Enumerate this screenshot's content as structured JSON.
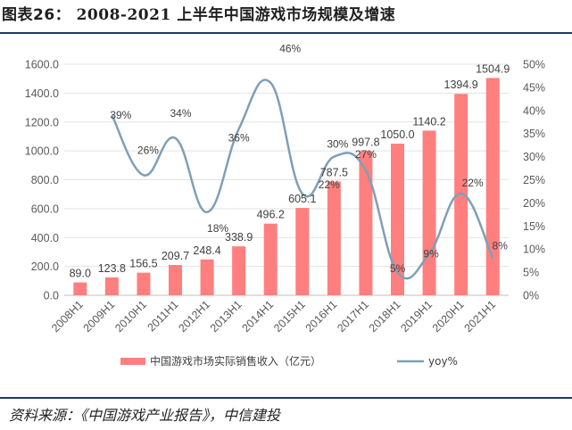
{
  "header": {
    "prefix": "图表26：",
    "title": "2008-2021 上半年中国游戏市场规模及增速"
  },
  "source": "资料来源：《中国游戏产业报告》，中信建投",
  "colors": {
    "bar": "#ff7f7f",
    "line": "#7f9fb7",
    "rule": "#1f3864"
  },
  "chart_data": {
    "type": "bar+line",
    "categories": [
      "2008H1",
      "2009H1",
      "2010H1",
      "2011H1",
      "2012H1",
      "2013H1",
      "2014H1",
      "2015H1",
      "2016H1",
      "2017H1",
      "2018H1",
      "2019H1",
      "2020H1",
      "2021H1"
    ],
    "series": [
      {
        "name": "中国游戏市场实际销售收入（亿元）",
        "type": "bar",
        "axis": "left",
        "values": [
          89.0,
          123.8,
          156.5,
          209.7,
          248.4,
          338.9,
          496.2,
          605.1,
          787.5,
          997.8,
          1050.0,
          1140.2,
          1394.9,
          1504.9
        ],
        "labels": [
          "89.0",
          "123.8",
          "156.5",
          "209.7",
          "248.4",
          "338.9",
          "496.2",
          "605.1",
          "787.5",
          "997.8",
          "1050.0",
          "1140.2",
          "1394.9",
          "1504.9"
        ]
      },
      {
        "name": "yoy%",
        "type": "line",
        "axis": "right",
        "values": [
          null,
          39,
          26,
          34,
          18,
          36,
          46,
          22,
          30,
          27,
          5,
          9,
          22,
          8
        ],
        "labels": [
          "",
          "39%",
          "26%",
          "34%",
          "18%",
          "36%",
          "46%",
          "22%",
          "30%",
          "27%",
          "5%",
          "9%",
          "22%",
          "8%"
        ]
      }
    ],
    "y_left": {
      "min": 0,
      "max": 1600,
      "step": 200,
      "ticks": [
        "0.0",
        "200.0",
        "400.0",
        "600.0",
        "800.0",
        "1000.0",
        "1200.0",
        "1400.0",
        "1600.0"
      ]
    },
    "y_right": {
      "min": 0,
      "max": 50,
      "step": 5,
      "ticks": [
        "0%",
        "5%",
        "10%",
        "15%",
        "20%",
        "25%",
        "30%",
        "35%",
        "40%",
        "45%",
        "50%"
      ]
    },
    "legend": {
      "bar": "中国游戏市场实际销售收入（亿元）",
      "line": "yoy%",
      "position": "bottom"
    }
  }
}
